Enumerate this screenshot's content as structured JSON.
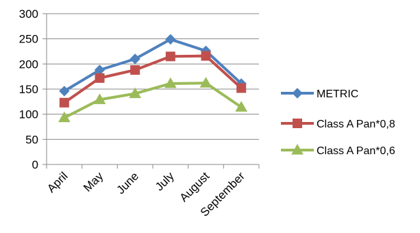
{
  "chart_data": {
    "type": "line",
    "categories": [
      "April",
      "May",
      "June",
      "July",
      "August",
      "September"
    ],
    "series": [
      {
        "name": "METRIC",
        "values": [
          146,
          188,
          210,
          249,
          226,
          161
        ],
        "color": "#4F81BD",
        "marker": "diamond"
      },
      {
        "name": "Class A Pan*0,8",
        "values": [
          123,
          172,
          188,
          215,
          216,
          152
        ],
        "color": "#C0504D",
        "marker": "square"
      },
      {
        "name": "Class A Pan*0,6",
        "values": [
          93,
          129,
          141,
          161,
          162,
          114
        ],
        "color": "#9BBB59",
        "marker": "triangle"
      }
    ],
    "ylim": [
      0,
      300
    ],
    "yticks": [
      0,
      50,
      100,
      150,
      200,
      250,
      300
    ],
    "grid": true,
    "legend_position": "right",
    "title": "",
    "xlabel": "",
    "ylabel": ""
  }
}
